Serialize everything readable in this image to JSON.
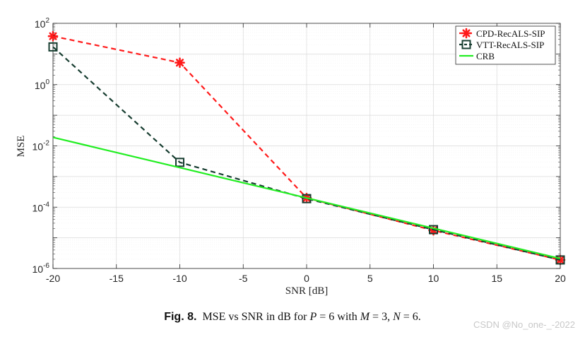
{
  "chart_data": {
    "type": "line",
    "yscale": "log",
    "xlabel": "SNR [dB]",
    "ylabel": "MSE",
    "x_ticks": [
      "-20",
      "-15",
      "-10",
      "-5",
      "0",
      "5",
      "10",
      "15",
      "20"
    ],
    "xlim": [
      -20,
      20
    ],
    "ylim": [
      1e-06,
      100
    ],
    "y_ticks": [
      {
        "base": "10",
        "exp": "2"
      },
      {
        "base": "10",
        "exp": "0"
      },
      {
        "base": "10",
        "exp": "-2"
      },
      {
        "base": "10",
        "exp": "-4"
      },
      {
        "base": "10",
        "exp": "-6"
      }
    ],
    "grid": true,
    "legend_position": "top-right",
    "series": [
      {
        "name": "CPD-RecALS-SIP",
        "color": "#ff1a1a",
        "style": "dashed",
        "marker": "asterisk",
        "x": [
          -20,
          -10,
          0,
          10,
          20
        ],
        "y": [
          38,
          5.2,
          0.0002,
          1.75e-05,
          1.9e-06
        ]
      },
      {
        "name": "VTT-RecALS-SIP",
        "color": "#173d30",
        "style": "dashed",
        "marker": "square",
        "x": [
          -20,
          -10,
          0,
          10,
          20
        ],
        "y": [
          17,
          0.0029,
          0.00019,
          1.85e-05,
          1.9e-06
        ]
      },
      {
        "name": "CRB",
        "color": "#22ee22",
        "style": "solid",
        "marker": "none",
        "x": [
          -20,
          20
        ],
        "y": [
          0.019,
          2.1e-06
        ]
      }
    ]
  },
  "caption": {
    "label": "Fig. 8.",
    "text_1": "MSE vs SNR in dB for ",
    "P": "P",
    "eq_p": " = 6 with ",
    "M": "M",
    "eq_m": " = 3, ",
    "N": "N",
    "eq_n": " = 6."
  },
  "watermark": "CSDN @No_one-_-2022"
}
